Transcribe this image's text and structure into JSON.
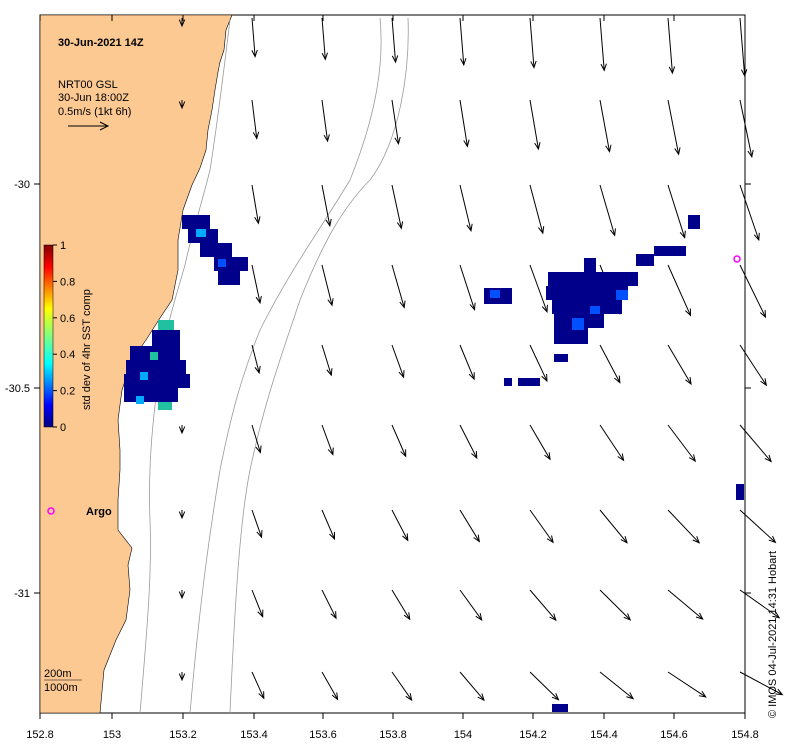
{
  "map": {
    "title": "30-Jun-2021 14Z",
    "legend": {
      "line1": "NRT00 GSL",
      "line2": "30-Jun 18:00Z",
      "line3": "0.5m/s (1kt 6h)"
    },
    "colorbar": {
      "label": "std dev of 4hr SST comp",
      "ticks": [
        "1",
        "0.8",
        "0.6",
        "0.4",
        "0.2",
        "0"
      ]
    },
    "argo_label": "Argo",
    "contours_label_1": "200m",
    "contours_label_2": "1000m",
    "credit": "© IMOS 04-Jul-2021 14:31 Hobart",
    "x_ticks": [
      "152.8",
      "153",
      "153.2",
      "153.4",
      "153.6",
      "153.8",
      "154",
      "154.2",
      "154.4",
      "154.6",
      "154.8"
    ],
    "y_ticks": [
      "-30",
      "-30.5",
      "-31"
    ],
    "colors": {
      "land": "#fcc993",
      "argo": "#ff00ff",
      "pixel_dark": "#00008b",
      "pixel_blue": "#0050ff",
      "pixel_light": "#00aaff",
      "pixel_teal": "#20c0a0"
    }
  }
}
